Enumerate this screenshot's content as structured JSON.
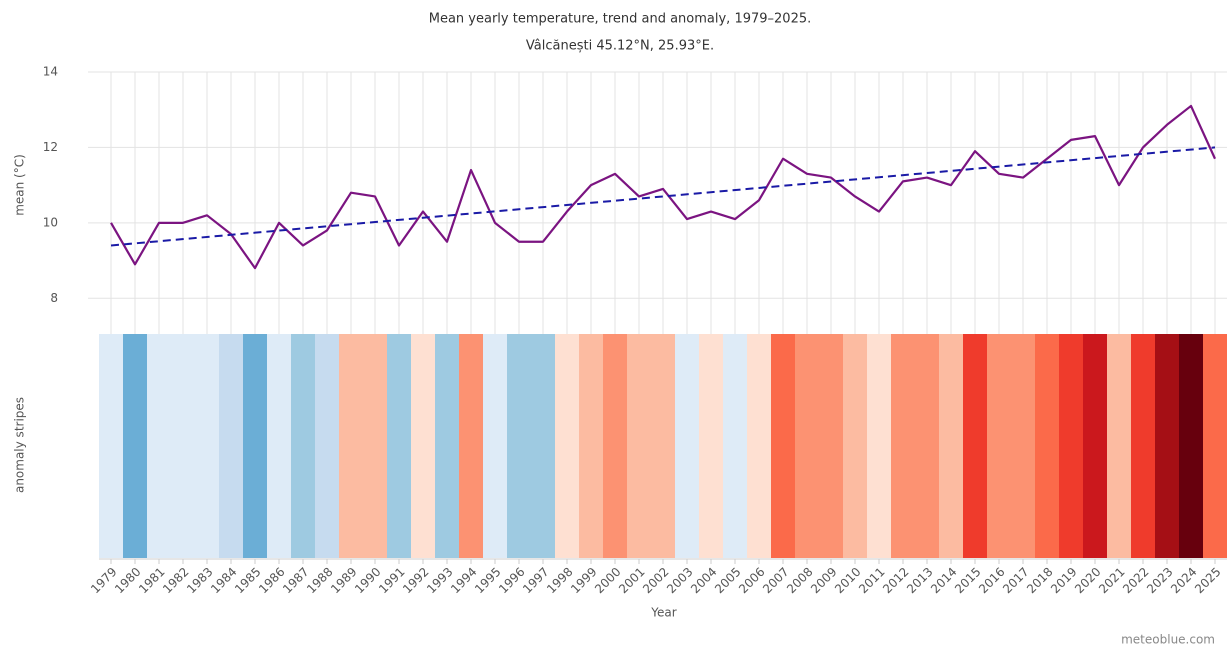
{
  "chart_data": {
    "type": "line",
    "title": "Mean yearly temperature, trend and anomaly, 1979–2025.",
    "subtitle": "Vâlcănești 45.12°N, 25.93°E.",
    "y_label": "mean (°C)",
    "stripes_label": "anomaly stripes",
    "x_label": "Year",
    "credit": "meteoblue.com",
    "categories": [
      "1979",
      "1980",
      "1981",
      "1982",
      "1983",
      "1984",
      "1985",
      "1986",
      "1987",
      "1988",
      "1989",
      "1990",
      "1991",
      "1992",
      "1993",
      "1994",
      "1995",
      "1996",
      "1997",
      "1998",
      "1999",
      "2000",
      "2001",
      "2002",
      "2003",
      "2004",
      "2005",
      "2006",
      "2007",
      "2008",
      "2009",
      "2010",
      "2011",
      "2012",
      "2013",
      "2014",
      "2015",
      "2016",
      "2017",
      "2018",
      "2019",
      "2020",
      "2021",
      "2022",
      "2023",
      "2024",
      "2025"
    ],
    "values": [
      10.0,
      8.9,
      10.0,
      10.0,
      10.2,
      9.7,
      8.8,
      10.0,
      9.4,
      9.8,
      10.8,
      10.7,
      9.4,
      10.3,
      9.5,
      11.4,
      10.0,
      9.5,
      9.5,
      10.3,
      11.0,
      11.3,
      10.7,
      10.9,
      10.1,
      10.3,
      10.1,
      10.6,
      11.7,
      11.3,
      11.2,
      10.7,
      10.3,
      11.1,
      11.2,
      11.0,
      11.9,
      11.3,
      11.2,
      11.7,
      12.2,
      12.3,
      11.0,
      12.0,
      12.6,
      13.1,
      11.7
    ],
    "color": "#7b1481",
    "trend": {
      "color": "#1a1aa6",
      "values": [
        9.4,
        12.0
      ]
    },
    "stripe_colors": [
      "#deebf7",
      "#6baed6",
      "#deebf7",
      "#deebf7",
      "#deebf7",
      "#c6dbef",
      "#6baed6",
      "#deebf7",
      "#9ecae1",
      "#c6dbef",
      "#fcbba1",
      "#fcbba1",
      "#9ecae1",
      "#fee0d2",
      "#9ecae1",
      "#fc9272",
      "#deebf7",
      "#9ecae1",
      "#9ecae1",
      "#fee0d2",
      "#fcbba1",
      "#fc9272",
      "#fcbba1",
      "#fcbba1",
      "#deebf7",
      "#fee0d2",
      "#deebf7",
      "#fee0d2",
      "#fb6a4a",
      "#fc9272",
      "#fc9272",
      "#fcbba1",
      "#fee0d2",
      "#fc9272",
      "#fc9272",
      "#fcbba1",
      "#ef3b2c",
      "#fc9272",
      "#fc9272",
      "#fb6a4a",
      "#ef3b2c",
      "#cb181d",
      "#fcbba1",
      "#ef3b2c",
      "#a50f15",
      "#67000d",
      "#fb6a4a"
    ],
    "ylim": [
      7,
      14
    ],
    "yticks": [
      8,
      10,
      12,
      14
    ],
    "grid": true
  }
}
